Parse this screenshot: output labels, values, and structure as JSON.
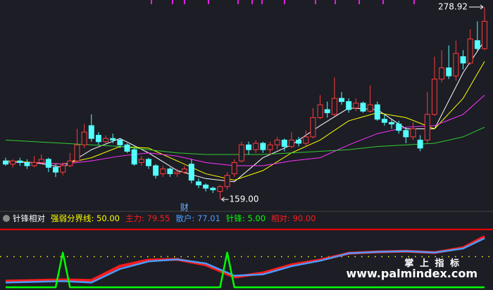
{
  "chart_data": [
    {
      "type": "candlestick",
      "ylim": [
        152,
        283.3
      ],
      "up_color": "#ff3b3b",
      "down_color": "#54ffff",
      "open": [
        183,
        181,
        183,
        182,
        180,
        182,
        184,
        179,
        176,
        180,
        183,
        193,
        205,
        199,
        195,
        197,
        196,
        193,
        190,
        182,
        184,
        180,
        175,
        178,
        175,
        176,
        181,
        170,
        168,
        166,
        164,
        167,
        175,
        183,
        193,
        190,
        194,
        190,
        193,
        196,
        192,
        196,
        194,
        198,
        210,
        215,
        212,
        222,
        220,
        216,
        219,
        214,
        218,
        209,
        207,
        206,
        202,
        198,
        196,
        196,
        212,
        234,
        241,
        236,
        248,
        244,
        258,
        253
      ],
      "close": [
        181,
        183,
        182,
        180,
        182,
        184,
        179,
        176,
        180,
        183,
        193,
        201,
        197,
        195,
        197,
        196,
        193,
        189,
        181,
        184,
        180,
        174,
        178,
        175,
        176,
        178,
        171,
        168,
        166,
        165,
        167,
        174,
        182,
        193,
        190,
        194,
        190,
        193,
        196,
        192,
        196,
        194,
        198,
        210,
        218,
        213,
        222,
        220,
        215,
        219,
        214,
        218,
        209,
        207,
        206,
        202,
        198,
        203,
        191,
        212,
        234,
        241,
        236,
        250,
        244,
        259,
        253,
        270
      ],
      "high": [
        185,
        184,
        185,
        184,
        186,
        187,
        185,
        181,
        182,
        188,
        203,
        206,
        212,
        201,
        199,
        200,
        197,
        194,
        191,
        186,
        185,
        181,
        180,
        179,
        178,
        180,
        184,
        172,
        169,
        167,
        168,
        176,
        184,
        195,
        195,
        196,
        195,
        195,
        198,
        197,
        201,
        198,
        202,
        216,
        224,
        220,
        235,
        226,
        222,
        222,
        220,
        230,
        220,
        212,
        209,
        208,
        204,
        207,
        199,
        226,
        248,
        252,
        255,
        258,
        252,
        265,
        270,
        278.92
      ],
      "low": [
        180,
        179,
        180,
        178,
        179,
        181,
        176,
        173,
        174,
        179,
        182,
        191,
        195,
        193,
        194,
        194,
        191,
        188,
        180,
        180,
        178,
        172,
        173,
        173,
        173,
        175,
        169,
        166,
        164,
        163,
        159,
        165,
        173,
        182,
        187,
        188,
        188,
        187,
        190,
        189,
        191,
        192,
        192,
        197,
        209,
        210,
        211,
        218,
        213,
        214,
        213,
        213,
        208,
        205,
        203,
        200,
        194,
        196,
        189,
        194,
        211,
        232,
        234,
        233,
        240,
        243,
        251,
        252
      ],
      "lines": [
        {
          "color": "#ffffff",
          "x": [
            0,
            4,
            8,
            12,
            16,
            20,
            24,
            28,
            32,
            36,
            40,
            44,
            48,
            52,
            56,
            60,
            64,
            67
          ],
          "values": [
            182,
            182,
            179,
            190,
            197,
            188,
            177,
            172,
            170,
            185,
            193,
            205,
            216,
            215,
            203,
            203,
            238,
            258
          ]
        },
        {
          "color": "#ffff00",
          "x": [
            0,
            4,
            8,
            12,
            16,
            20,
            24,
            28,
            32,
            36,
            40,
            44,
            48,
            52,
            56,
            60,
            64,
            67
          ],
          "values": [
            183,
            182,
            181,
            185,
            192,
            191,
            183,
            175,
            171,
            177,
            188,
            196,
            208,
            213,
            210,
            203,
            222,
            245
          ]
        },
        {
          "color": "#ff33ff",
          "x": [
            0,
            4,
            8,
            12,
            16,
            20,
            24,
            28,
            32,
            36,
            40,
            44,
            48,
            52,
            56,
            60,
            64,
            67
          ],
          "values": [
            182,
            182,
            181,
            183,
            186,
            188,
            186,
            182,
            180,
            180,
            183,
            185,
            193,
            200,
            204,
            205,
            212,
            224
          ]
        },
        {
          "color": "#33cc33",
          "x": [
            0,
            4,
            8,
            12,
            16,
            20,
            24,
            28,
            32,
            36,
            40,
            44,
            48,
            52,
            56,
            60,
            64,
            67
          ],
          "values": [
            196,
            195,
            194,
            193,
            192,
            190,
            188,
            187,
            187,
            187,
            188,
            189,
            190,
            192,
            193,
            194,
            198,
            204
          ]
        }
      ],
      "annotations": [
        {
          "index": 30,
          "value": 159,
          "label": "159.00"
        },
        {
          "index": 67,
          "value": 278.92,
          "label": "278.92"
        }
      ],
      "markers": [
        {
          "index": 25,
          "text": "财"
        }
      ]
    },
    {
      "type": "line",
      "title": "针锋相对",
      "ylim": [
        0,
        100
      ],
      "levels": [
        {
          "name": "强弱分界线:",
          "color": "#ffff00",
          "value": 50,
          "label": "50.00"
        },
        {
          "name": "相对:",
          "color": "#ff0000",
          "value": 90,
          "label": "90.00"
        }
      ],
      "series": [
        {
          "name": "主力:",
          "color": "#ff1a1a",
          "x": [
            0,
            4,
            8,
            12,
            16,
            20,
            24,
            28,
            32,
            36,
            40,
            44,
            48,
            52,
            56,
            60,
            64,
            67
          ],
          "values": [
            14,
            15,
            16,
            15,
            36,
            45,
            46,
            38,
            20,
            26,
            38,
            45,
            55,
            57,
            58,
            56,
            63,
            79.55
          ],
          "current": {
            "value": 79.55,
            "label": "79.55"
          }
        },
        {
          "name": "散户:",
          "color": "#4a9cff",
          "x": [
            0,
            4,
            8,
            12,
            16,
            20,
            24,
            28,
            32,
            36,
            40,
            44,
            48,
            52,
            56,
            60,
            64,
            67
          ],
          "values": [
            12,
            13,
            14,
            12,
            32,
            43,
            46,
            40,
            22,
            24,
            36,
            44,
            55,
            57,
            58,
            56,
            62,
            77.01
          ],
          "current": {
            "value": 77.01,
            "label": "77.01"
          }
        },
        {
          "name": "针锋:",
          "color": "#00ff00",
          "x": [
            0,
            7,
            8,
            9,
            30,
            31,
            32,
            67
          ],
          "values": [
            5,
            5,
            56,
            5,
            5,
            56,
            5,
            5
          ],
          "current": {
            "value": 5,
            "label": "5.00"
          }
        }
      ]
    }
  ],
  "watermark": {
    "title": "掌 上 指 标",
    "url": "www.palmindex.com"
  }
}
